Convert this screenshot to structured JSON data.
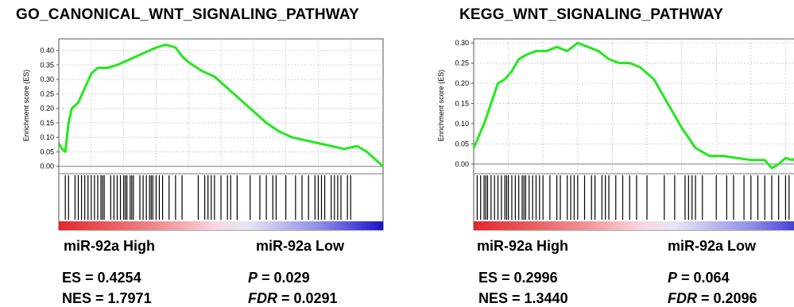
{
  "colors": {
    "curve": "#22e81e",
    "hit": "#000000",
    "grid": "#c8c8c8"
  },
  "panels": [
    {
      "title": "GO_CANONICAL_WNT_SIGNALING_PATHWAY",
      "phenotype_left": "miR-92a High",
      "phenotype_right": "miR-92a Low",
      "es_text": "ES = 0.4254",
      "nes_text": "NES = 1.7971",
      "p_label": "P",
      "p_value": " = 0.029",
      "fdr_label": "FDR",
      "fdr_value": " = 0.0291"
    },
    {
      "title": "KEGG_WNT_SIGNALING_PATHWAY",
      "phenotype_left": "miR-92a High",
      "phenotype_right": "miR-92a Low",
      "es_text": "ES = 0.2996",
      "nes_text": "NES = 1.3440",
      "p_label": "P",
      "p_value": " = 0.064",
      "fdr_label": "FDR",
      "fdr_value": " = 0.2096"
    }
  ],
  "chart_data": [
    {
      "type": "line",
      "ylabel": "Enrichment score (ES)",
      "ylim": [
        -0.02,
        0.44
      ],
      "yticks": [
        "0.00",
        "0.05",
        "0.10",
        "0.15",
        "0.20",
        "0.25",
        "0.30",
        "0.35",
        "0.40"
      ],
      "grid": true,
      "series": [
        {
          "x": [
            0,
            0.01,
            0.02,
            0.03,
            0.04,
            0.06,
            0.08,
            0.1,
            0.12,
            0.15,
            0.18,
            0.2,
            0.24,
            0.28,
            0.3,
            0.33,
            0.36,
            0.38,
            0.4,
            0.44,
            0.48,
            0.52,
            0.56,
            0.6,
            0.64,
            0.68,
            0.72,
            0.76,
            0.8,
            0.84,
            0.88,
            0.92,
            0.95,
            0.97,
            1.0
          ],
          "y": [
            0.08,
            0.06,
            0.05,
            0.15,
            0.2,
            0.22,
            0.27,
            0.32,
            0.34,
            0.34,
            0.35,
            0.36,
            0.38,
            0.4,
            0.41,
            0.42,
            0.41,
            0.38,
            0.36,
            0.33,
            0.31,
            0.27,
            0.23,
            0.19,
            0.15,
            0.12,
            0.1,
            0.09,
            0.08,
            0.07,
            0.06,
            0.07,
            0.05,
            0.03,
            0.0
          ]
        }
      ],
      "hits": [
        0.02,
        0.03,
        0.05,
        0.06,
        0.07,
        0.08,
        0.09,
        0.1,
        0.11,
        0.12,
        0.13,
        0.135,
        0.14,
        0.16,
        0.17,
        0.18,
        0.19,
        0.2,
        0.205,
        0.21,
        0.22,
        0.225,
        0.23,
        0.25,
        0.26,
        0.27,
        0.28,
        0.285,
        0.29,
        0.3,
        0.31,
        0.32,
        0.34,
        0.36,
        0.38,
        0.43,
        0.45,
        0.46,
        0.47,
        0.48,
        0.5,
        0.52,
        0.53,
        0.55,
        0.59,
        0.62,
        0.64,
        0.66,
        0.67,
        0.7,
        0.73,
        0.75,
        0.77,
        0.79,
        0.8,
        0.81,
        0.82,
        0.84,
        0.85,
        0.86,
        0.87,
        0.89,
        0.9
      ]
    },
    {
      "type": "line",
      "ylabel": "Enrichment score (ES)",
      "ylim": [
        -0.02,
        0.31
      ],
      "yticks": [
        "0.00",
        "0.05",
        "0.10",
        "0.15",
        "0.20",
        "0.25",
        "0.30"
      ],
      "grid": true,
      "series": [
        {
          "x": [
            0,
            0.01,
            0.03,
            0.05,
            0.07,
            0.09,
            0.11,
            0.13,
            0.15,
            0.18,
            0.21,
            0.24,
            0.27,
            0.3,
            0.33,
            0.36,
            0.39,
            0.42,
            0.45,
            0.48,
            0.52,
            0.56,
            0.6,
            0.64,
            0.68,
            0.72,
            0.76,
            0.8,
            0.84,
            0.86,
            0.88,
            0.9,
            0.92,
            0.94,
            0.96,
            0.98,
            1.0
          ],
          "y": [
            0.04,
            0.06,
            0.1,
            0.15,
            0.2,
            0.21,
            0.23,
            0.26,
            0.27,
            0.28,
            0.28,
            0.29,
            0.28,
            0.3,
            0.29,
            0.28,
            0.26,
            0.25,
            0.25,
            0.24,
            0.21,
            0.15,
            0.09,
            0.04,
            0.02,
            0.02,
            0.015,
            0.01,
            0.01,
            -0.01,
            0.0,
            0.015,
            0.01,
            0.02,
            0.015,
            0.01,
            0.0
          ]
        }
      ],
      "hits": [
        0.01,
        0.02,
        0.03,
        0.035,
        0.04,
        0.05,
        0.06,
        0.07,
        0.08,
        0.09,
        0.095,
        0.1,
        0.11,
        0.12,
        0.13,
        0.14,
        0.145,
        0.15,
        0.16,
        0.17,
        0.18,
        0.19,
        0.2,
        0.22,
        0.24,
        0.25,
        0.27,
        0.28,
        0.29,
        0.3,
        0.32,
        0.34,
        0.35,
        0.37,
        0.38,
        0.39,
        0.41,
        0.43,
        0.45,
        0.47,
        0.5,
        0.55,
        0.58,
        0.61,
        0.62,
        0.63,
        0.64,
        0.66,
        0.7,
        0.73,
        0.75,
        0.78,
        0.8,
        0.82,
        0.84,
        0.86,
        0.88,
        0.9,
        0.91,
        0.93,
        0.96,
        0.98
      ]
    }
  ]
}
